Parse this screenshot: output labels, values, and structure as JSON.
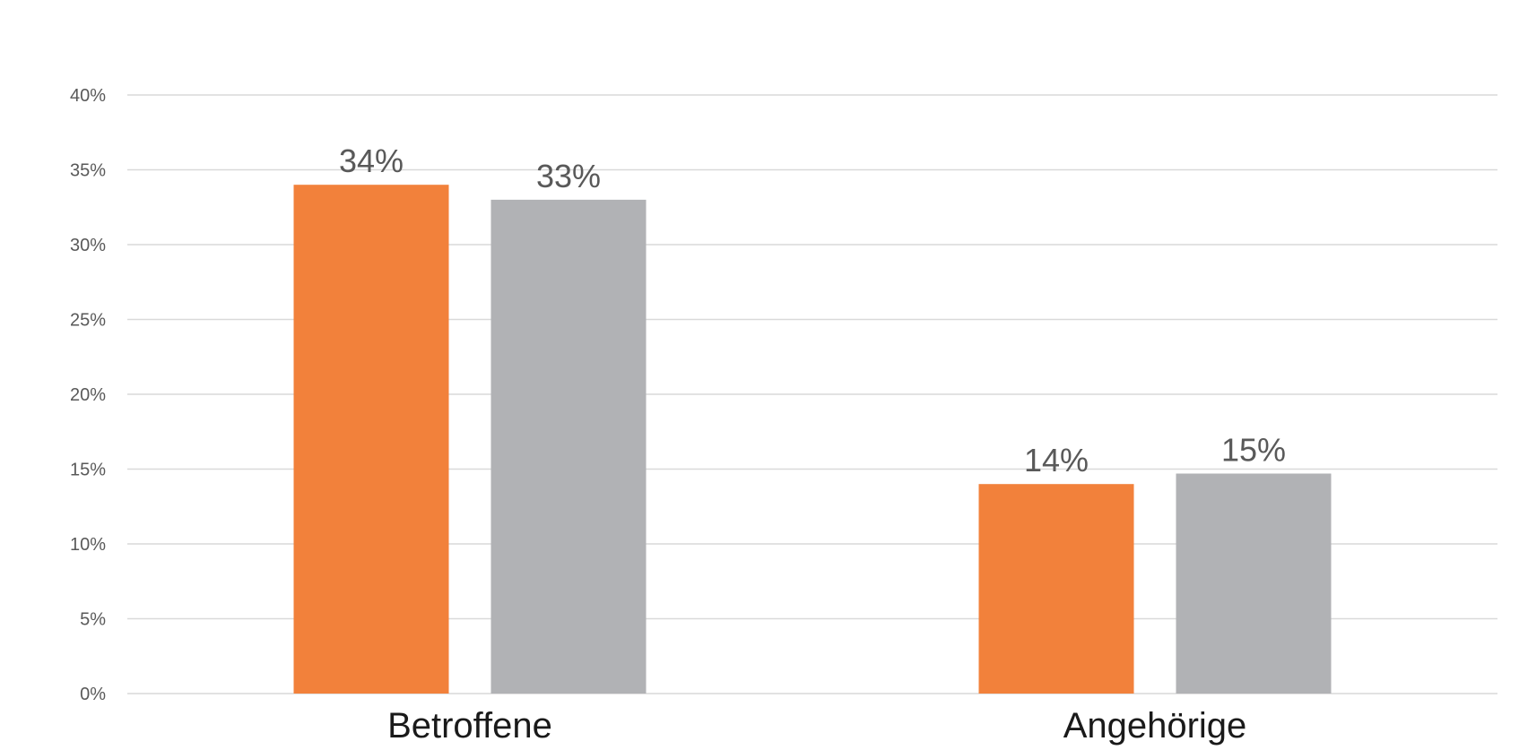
{
  "chart_data": {
    "type": "bar",
    "categories": [
      "Betroffene",
      "Angehörige"
    ],
    "series": [
      {
        "values": [
          34,
          14
        ],
        "labels": [
          "34%",
          "14%"
        ],
        "color": "#F2813B"
      },
      {
        "values": [
          33,
          14.7
        ],
        "labels": [
          "33%",
          "15%"
        ],
        "color": "#B1B2B5"
      }
    ],
    "ylim": [
      0,
      40
    ],
    "yticks": [
      0,
      5,
      10,
      15,
      20,
      25,
      30,
      35,
      40
    ],
    "ytick_labels": [
      "0%",
      "5%",
      "10%",
      "15%",
      "20%",
      "25%",
      "30%",
      "35%",
      "40%"
    ],
    "grid": true,
    "legend": "none",
    "title": "",
    "xlabel": "",
    "ylabel": ""
  }
}
